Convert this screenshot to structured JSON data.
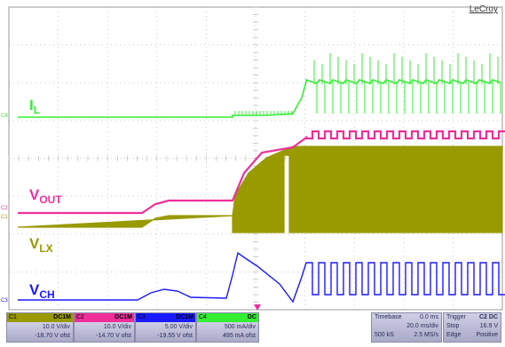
{
  "brand": "LeCroy",
  "traces": [
    {
      "label_main": "I",
      "label_sub": "L",
      "color": "#33ee33"
    },
    {
      "label_main": "V",
      "label_sub": "OUT",
      "color": "#ee2f9a"
    },
    {
      "label_main": "V",
      "label_sub": "LX",
      "color": "#999900"
    },
    {
      "label_main": "V",
      "label_sub": "CH",
      "color": "#1a1aff"
    }
  ],
  "channel_markers": [
    "C4",
    "C2",
    "C1",
    "C3"
  ],
  "channels": [
    {
      "name": "C1",
      "coupling": "DC1M",
      "scale": "10.0 V/div",
      "offset": "-18.70 V ofst",
      "color": "#999900"
    },
    {
      "name": "C2",
      "coupling": "DC1M",
      "scale": "10.0 V/div",
      "offset": "-14.70 V ofst",
      "color": "#ee2f9a"
    },
    {
      "name": "C3",
      "coupling": "DC1M",
      "scale": "5.00 V/div",
      "offset": "-19.55 V ofst",
      "color": "#1a1aff"
    },
    {
      "name": "C4",
      "coupling": "DC",
      "scale": "500 mA/div",
      "offset": "495 mA ofst",
      "color": "#33ee33"
    }
  ],
  "timebase": {
    "label": "Timebase",
    "value": "0.0 ms",
    "per_div": "20.0 ms/div",
    "samples": "500 kS",
    "rate": "2.5 MS/s"
  },
  "trigger": {
    "label": "Trigger",
    "channel": "C2 DC",
    "level": "16.9 V",
    "mode": "Stop",
    "type": "Edge",
    "slope": "Positive"
  }
}
